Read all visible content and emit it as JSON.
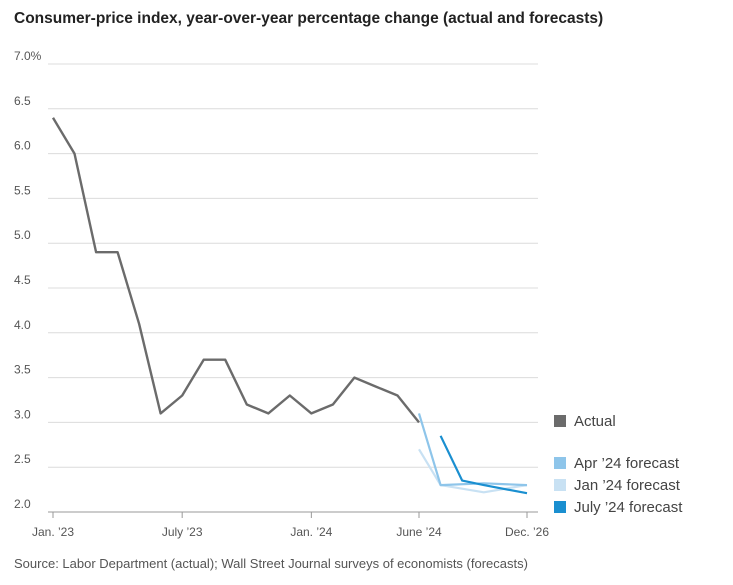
{
  "chart_data": {
    "type": "line",
    "title": "Consumer-price index, year-over-year percentage change (actual and forecasts)",
    "source": "Source: Labor Department (actual); Wall Street Journal surveys of economists (forecasts)",
    "ylim": [
      2.0,
      7.0
    ],
    "y_ticks": [
      "7.0%",
      "6.5",
      "6.0",
      "5.5",
      "5.0",
      "4.5",
      "4.0",
      "3.5",
      "3.0",
      "2.5",
      "2.0"
    ],
    "y_tick_values": [
      7.0,
      6.5,
      6.0,
      5.5,
      5.0,
      4.5,
      4.0,
      3.5,
      3.0,
      2.5,
      2.0
    ],
    "x_ticks": [
      "Jan. ’23",
      "July ’23",
      "Jan. ’24",
      "June ’24",
      "Dec. ’26"
    ],
    "x_tick_dates": [
      "2023-01",
      "2023-07",
      "2024-01",
      "2024-06",
      "2026-12"
    ],
    "grid": "horizontal",
    "legend_position": "right",
    "series": [
      {
        "name": "Actual",
        "color": "#6b6b6b",
        "x": [
          "2023-01",
          "2023-02",
          "2023-03",
          "2023-04",
          "2023-05",
          "2023-06",
          "2023-07",
          "2023-08",
          "2023-09",
          "2023-10",
          "2023-11",
          "2023-12",
          "2024-01",
          "2024-02",
          "2024-03",
          "2024-04",
          "2024-05",
          "2024-06"
        ],
        "values": [
          6.4,
          6.0,
          4.9,
          4.9,
          4.1,
          3.1,
          3.3,
          3.7,
          3.7,
          3.2,
          3.1,
          3.3,
          3.1,
          3.2,
          3.5,
          3.4,
          3.3,
          3.0
        ]
      },
      {
        "name": "Apr ’24 forecast",
        "color": "#8ec5ea",
        "x": [
          "2024-06",
          "2024-12",
          "2025-12",
          "2026-12"
        ],
        "values": [
          3.1,
          2.3,
          2.32,
          2.3
        ]
      },
      {
        "name": "Jan ’24 forecast",
        "color": "#c8e1f3",
        "x": [
          "2024-06",
          "2024-12",
          "2025-12",
          "2026-12"
        ],
        "values": [
          2.7,
          2.3,
          2.22,
          2.3
        ]
      },
      {
        "name": "July ’24 forecast",
        "color": "#1a8fd0",
        "x": [
          "2024-12",
          "2025-06",
          "2025-12",
          "2026-12"
        ],
        "values": [
          2.85,
          2.35,
          2.3,
          2.21
        ]
      }
    ]
  }
}
